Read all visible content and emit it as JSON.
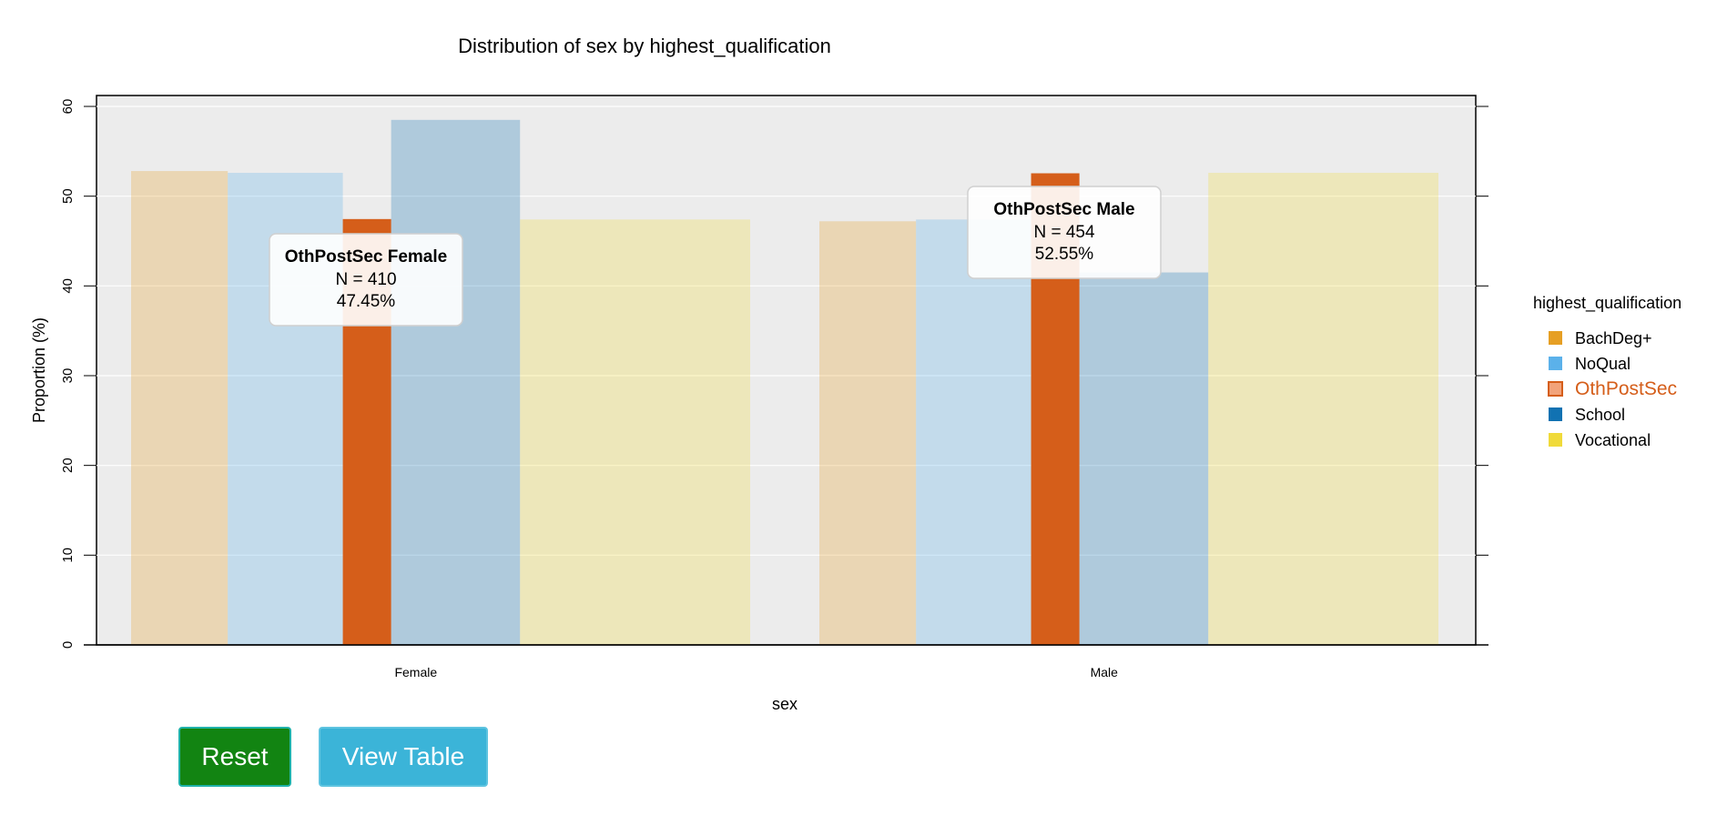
{
  "chart_data": {
    "type": "bar",
    "title": "Distribution of sex by highest_qualification",
    "xlabel": "sex",
    "ylabel": "Proportion (%)",
    "ylim": [
      0,
      61
    ],
    "yticks": [
      0,
      10,
      20,
      30,
      40,
      50,
      60
    ],
    "grid": true,
    "categories": [
      "Female",
      "Male"
    ],
    "legend": {
      "title": "highest_qualification",
      "position": "right",
      "highlighted": "OthPostSec"
    },
    "series": [
      {
        "name": "BachDeg+",
        "color": "#E69F24",
        "values": [
          52.8,
          47.2
        ],
        "width_share": [
          0.42,
          0.42
        ]
      },
      {
        "name": "NoQual",
        "color": "#5BB1EA",
        "values": [
          52.6,
          47.4
        ],
        "width_share": [
          0.5,
          0.5
        ]
      },
      {
        "name": "OthPostSec",
        "color": "#D55E1A",
        "values": [
          47.45,
          52.55
        ],
        "width_share": [
          0.21,
          0.21
        ]
      },
      {
        "name": "School",
        "color": "#1172B2",
        "values": [
          58.5,
          41.5
        ],
        "width_share": [
          0.56,
          0.56
        ]
      },
      {
        "name": "Vocational",
        "color": "#F0DA3A",
        "values": [
          47.4,
          52.6
        ],
        "width_share": [
          1.0,
          1.0
        ]
      }
    ],
    "tooltips": [
      {
        "title": "OthPostSec Female",
        "n": "N = 410",
        "pct": "47.45%"
      },
      {
        "title": "OthPostSec Male",
        "n": "N = 454",
        "pct": "52.55%"
      }
    ]
  },
  "buttons": {
    "reset": {
      "label": "Reset",
      "color": "#128412"
    },
    "view_table": {
      "label": "View Table",
      "color": "#3BB4D8"
    }
  }
}
